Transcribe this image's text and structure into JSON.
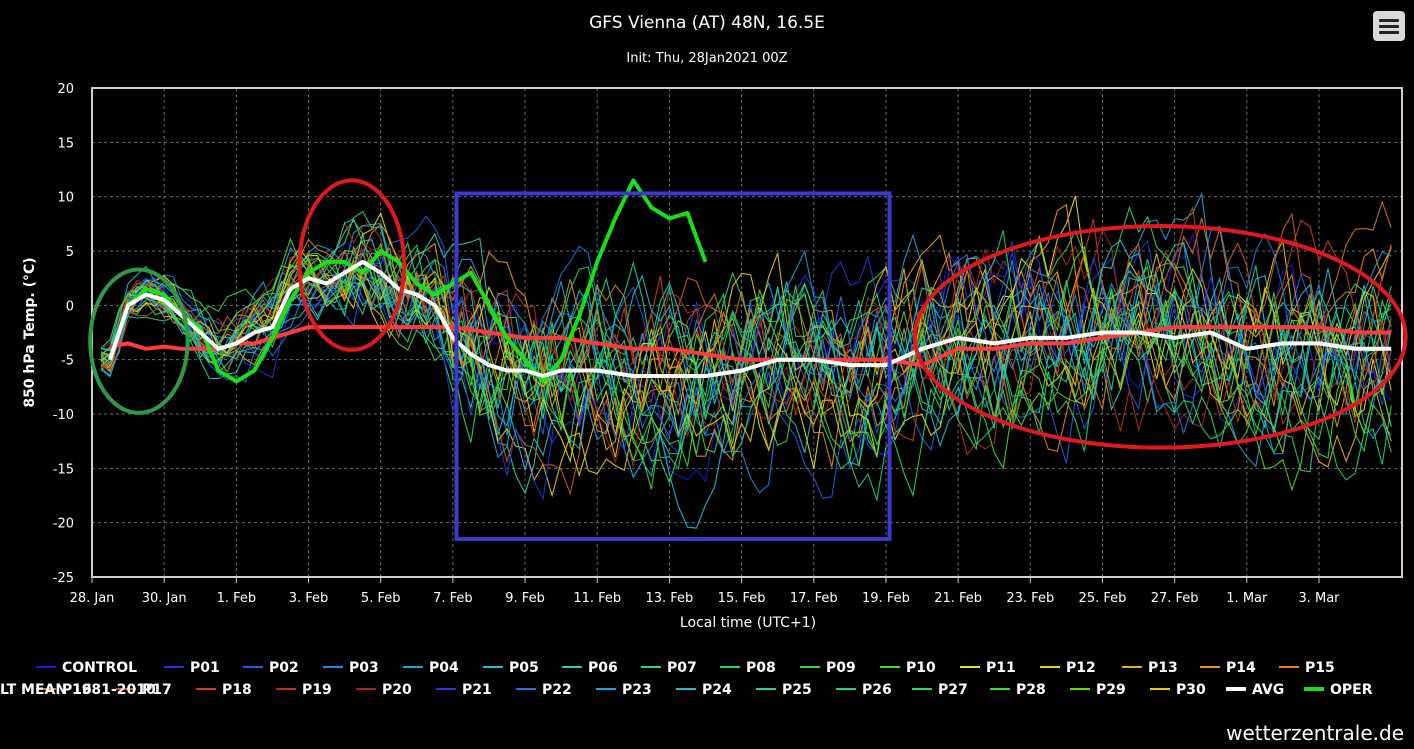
{
  "header": {
    "title": "GFS Vienna (AT) 48N, 16.5E",
    "subtitle": "Init: Thu, 28Jan2021 00Z"
  },
  "credit": "wetterzentrale.de",
  "menu_icon": "hamburger-menu-icon",
  "chart_data": {
    "type": "line",
    "title": "GFS Vienna (AT) 48N, 16.5E",
    "subtitle": "Init: Thu, 28Jan2021 00Z",
    "xlabel": "Local time (UTC+1)",
    "ylabel": "850 hPa Temp. (°C)",
    "xlim": [
      0,
      36.3
    ],
    "ylim": [
      -25,
      20
    ],
    "yticks": [
      -25,
      -20,
      -15,
      -10,
      -5,
      0,
      5,
      10,
      15,
      20
    ],
    "x_unit": "days since 28. Jan",
    "xticks": [
      {
        "x": 0,
        "label": "28. Jan"
      },
      {
        "x": 2,
        "label": "30. Jan"
      },
      {
        "x": 4,
        "label": "1. Feb"
      },
      {
        "x": 6,
        "label": "3. Feb"
      },
      {
        "x": 8,
        "label": "5. Feb"
      },
      {
        "x": 10,
        "label": "7. Feb"
      },
      {
        "x": 12,
        "label": "9. Feb"
      },
      {
        "x": 14,
        "label": "11. Feb"
      },
      {
        "x": 16,
        "label": "13. Feb"
      },
      {
        "x": 18,
        "label": "15. Feb"
      },
      {
        "x": 20,
        "label": "17. Feb"
      },
      {
        "x": 22,
        "label": "19. Feb"
      },
      {
        "x": 24,
        "label": "21. Feb"
      },
      {
        "x": 26,
        "label": "23. Feb"
      },
      {
        "x": 28,
        "label": "25. Feb"
      },
      {
        "x": 30,
        "label": "27. Feb"
      },
      {
        "x": 32,
        "label": "1. Mar"
      },
      {
        "x": 34,
        "label": "3. Mar"
      }
    ],
    "grid": true,
    "legend_position": "bottom",
    "ensemble_members": [
      {
        "name": "CONTROL",
        "color": "#1a1ad6"
      },
      {
        "name": "P01",
        "color": "#2233e0"
      },
      {
        "name": "P02",
        "color": "#1f5fe6"
      },
      {
        "name": "P03",
        "color": "#1b8ae0"
      },
      {
        "name": "P04",
        "color": "#19a6dd"
      },
      {
        "name": "P05",
        "color": "#1cc3d6"
      },
      {
        "name": "P06",
        "color": "#1fd3b4"
      },
      {
        "name": "P07",
        "color": "#22d88c"
      },
      {
        "name": "P08",
        "color": "#22d86a"
      },
      {
        "name": "P09",
        "color": "#2fd84a"
      },
      {
        "name": "P10",
        "color": "#4cd830"
      },
      {
        "name": "P11",
        "color": "#e6e61a"
      },
      {
        "name": "P12",
        "color": "#e6cf1a"
      },
      {
        "name": "P13",
        "color": "#e6b21a"
      },
      {
        "name": "P14",
        "color": "#e69a1a"
      },
      {
        "name": "P15",
        "color": "#e6861a"
      },
      {
        "name": "P16",
        "color": "#d9731f"
      },
      {
        "name": "P17",
        "color": "#d45a1f"
      },
      {
        "name": "P18",
        "color": "#c9411f"
      },
      {
        "name": "P19",
        "color": "#b8301f"
      },
      {
        "name": "P20",
        "color": "#a8251f"
      },
      {
        "name": "P21",
        "color": "#1f3be0"
      },
      {
        "name": "P22",
        "color": "#1f75e0"
      },
      {
        "name": "P23",
        "color": "#1f9ee0"
      },
      {
        "name": "P24",
        "color": "#1fc0d0"
      },
      {
        "name": "P25",
        "color": "#1fd3a0"
      },
      {
        "name": "P26",
        "color": "#1fd47a"
      },
      {
        "name": "P27",
        "color": "#2ed85a"
      },
      {
        "name": "P28",
        "color": "#3fd83a"
      },
      {
        "name": "P29",
        "color": "#5ad81f"
      },
      {
        "name": "P30",
        "color": "#e6c81a"
      }
    ],
    "series": [
      {
        "name": "AVG",
        "color": "#ffffff",
        "width": 4,
        "x": [
          0.5,
          1,
          1.5,
          2,
          2.5,
          3,
          3.5,
          4,
          4.5,
          5,
          5.5,
          6,
          6.5,
          7,
          7.5,
          8,
          8.5,
          9,
          9.5,
          10,
          10.5,
          11,
          11.5,
          12,
          12.5,
          13,
          14,
          15,
          16,
          17,
          18,
          19,
          20,
          21,
          22,
          23,
          24,
          25,
          26,
          27,
          28,
          29,
          30,
          31,
          32,
          33,
          34,
          35,
          36
        ],
        "y": [
          -5,
          0,
          1,
          0.5,
          -1,
          -2.5,
          -4,
          -3.5,
          -2.5,
          -2,
          1.5,
          2.5,
          2,
          3,
          4,
          3,
          1.5,
          1,
          0,
          -3,
          -4.5,
          -5.5,
          -6,
          -6,
          -6.5,
          -6,
          -6,
          -6.5,
          -6.5,
          -6.5,
          -6,
          -5,
          -5,
          -5.5,
          -5.5,
          -4,
          -3,
          -3.5,
          -3,
          -3,
          -2.5,
          -2.5,
          -3,
          -2.5,
          -4,
          -3.5,
          -3.5,
          -4,
          -4
        ]
      },
      {
        "name": "OPER",
        "color": "#17e017",
        "width": 4,
        "x": [
          0.5,
          1,
          1.5,
          2,
          2.5,
          3,
          3.5,
          4,
          4.5,
          5,
          5.5,
          6,
          6.5,
          7,
          7.5,
          8,
          8.5,
          9,
          9.5,
          10,
          10.5,
          11,
          11.5,
          12,
          12.5,
          13,
          13.5,
          14,
          14.5,
          15,
          15.5,
          16,
          16.5,
          17
        ],
        "y": [
          -5,
          0,
          1.5,
          1,
          -1,
          -2,
          -6,
          -7,
          -6,
          -3,
          0.5,
          3,
          4,
          4,
          3,
          5,
          4,
          2,
          1,
          2,
          3,
          0,
          -3,
          -5,
          -7,
          -5,
          -1,
          4,
          8,
          11.5,
          9,
          8,
          8.5,
          4
        ]
      },
      {
        "name": "LT MEAN 1981–2010",
        "color": "#ff3b3b",
        "width": 4,
        "x": [
          0.5,
          1,
          1.5,
          2,
          2.5,
          3,
          3.5,
          4,
          4.5,
          5,
          6,
          7,
          8,
          9,
          10,
          11,
          12,
          13,
          14,
          15,
          16,
          17,
          18,
          19,
          20,
          21,
          22,
          23,
          24,
          25,
          26,
          27,
          28,
          29,
          30,
          31,
          32,
          33,
          34,
          35,
          36
        ],
        "y": [
          -3.8,
          -3.5,
          -4,
          -3.8,
          -4,
          -4,
          -4,
          -3.5,
          -3.5,
          -3,
          -2,
          -2,
          -2,
          -2,
          -2,
          -2.5,
          -3,
          -3,
          -3.5,
          -4,
          -4,
          -4.5,
          -5,
          -5,
          -5,
          -5,
          -5,
          -5.5,
          -4,
          -4,
          -3.5,
          -3.5,
          -3,
          -2.5,
          -2,
          -2,
          -2,
          -2,
          -2,
          -2.5,
          -2.5
        ]
      }
    ],
    "legend": [
      "CONTROL",
      "P01",
      "P02",
      "P03",
      "P04",
      "P05",
      "P06",
      "P07",
      "P08",
      "P09",
      "P10",
      "P11",
      "P12",
      "P13",
      "P14",
      "P15",
      "P16",
      "P17",
      "P18",
      "P19",
      "P20",
      "P21",
      "P22",
      "P23",
      "P24",
      "P25",
      "P26",
      "P27",
      "P28",
      "P29",
      "P30",
      "AVG",
      "OPER",
      "LT MEAN 1981-2010"
    ],
    "annotations": [
      {
        "shape": "ellipse",
        "color": "#2e9a47",
        "cx": 1.3,
        "cy": -3.3,
        "rx": 1.35,
        "ry": 6.6
      },
      {
        "shape": "ellipse",
        "color": "#e0191f",
        "cx": 7.2,
        "cy": 3.7,
        "rx": 1.45,
        "ry": 7.8
      },
      {
        "shape": "rect",
        "color": "#3a3acc",
        "x0": 10.1,
        "x1": 22.1,
        "y0": -21.5,
        "y1": 10.3
      },
      {
        "shape": "ellipse",
        "color": "#e0191f",
        "cx": 29.6,
        "cy": -2.9,
        "rx": 6.8,
        "ry": 10.2
      }
    ]
  }
}
